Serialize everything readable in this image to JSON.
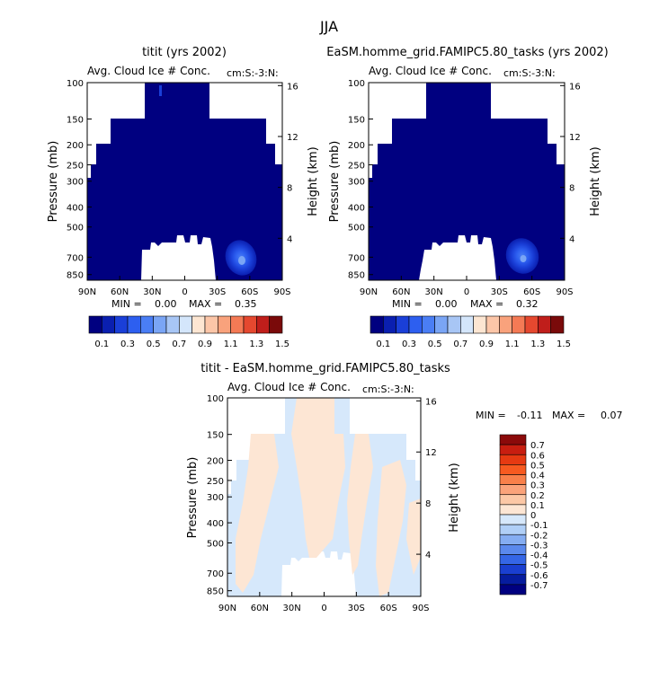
{
  "figure": {
    "title": "JJA"
  },
  "chart_data": [
    {
      "type": "heatmap",
      "title": "titit (yrs 2002)",
      "subtitle": "Avg. Cloud Ice # Conc.",
      "right_string": "cm:S:-3:N:",
      "xlabel": "",
      "ylabel": "Pressure (mb)",
      "ylabel_right": "Height (km)",
      "x_ticks": [
        "90N",
        "60N",
        "30N",
        "0",
        "30S",
        "60S",
        "90S"
      ],
      "y_ticks": [
        "100",
        "150",
        "200",
        "250",
        "300",
        "400",
        "500",
        "700",
        "850"
      ],
      "y_right_ticks": [
        "16",
        "12",
        "8",
        "4"
      ],
      "xlim": [
        90,
        -90
      ],
      "ylim": [
        1000,
        100
      ],
      "min_label": "MIN =",
      "min_value": "0.00",
      "max_label": "MAX =",
      "max_value": "0.35",
      "max_location": {
        "lat": -50,
        "pressure": 720
      },
      "colorbar_labels": [
        "0.1",
        "0.3",
        "0.5",
        "0.7",
        "0.9",
        "1.1",
        "1.3",
        "1.5"
      ],
      "colorbar_colors": [
        "#000080",
        "#0a1fb0",
        "#1a3fd8",
        "#2d5ff0",
        "#4a7ef5",
        "#7aa5f5",
        "#a8c6f5",
        "#d4e6fb",
        "#fde6d2",
        "#fcc6a8",
        "#f9a27c",
        "#f47a55",
        "#e5482f",
        "#c01e1b",
        "#7a0a0a"
      ]
    },
    {
      "type": "heatmap",
      "title": "EaSM.homme_grid.FAMIPC5.80_tasks (yrs 2002)",
      "subtitle": "Avg. Cloud Ice # Conc.",
      "right_string": "cm:S:-3:N:",
      "xlabel": "",
      "ylabel": "Pressure (mb)",
      "ylabel_right": "Height (km)",
      "x_ticks": [
        "90N",
        "60N",
        "30N",
        "0",
        "30S",
        "60S",
        "90S"
      ],
      "y_ticks": [
        "100",
        "150",
        "200",
        "250",
        "300",
        "400",
        "500",
        "700",
        "850"
      ],
      "y_right_ticks": [
        "16",
        "12",
        "8",
        "4"
      ],
      "xlim": [
        90,
        -90
      ],
      "ylim": [
        1000,
        100
      ],
      "min_label": "MIN =",
      "min_value": "0.00",
      "max_label": "MAX =",
      "max_value": "0.32",
      "max_location": {
        "lat": -50,
        "pressure": 720
      },
      "colorbar_labels": [
        "0.1",
        "0.3",
        "0.5",
        "0.7",
        "0.9",
        "1.1",
        "1.3",
        "1.5"
      ],
      "colorbar_colors": [
        "#000080",
        "#0a1fb0",
        "#1a3fd8",
        "#2d5ff0",
        "#4a7ef5",
        "#7aa5f5",
        "#a8c6f5",
        "#d4e6fb",
        "#fde6d2",
        "#fcc6a8",
        "#f9a27c",
        "#f47a55",
        "#e5482f",
        "#c01e1b",
        "#7a0a0a"
      ]
    },
    {
      "type": "heatmap",
      "title": "titit - EaSM.homme_grid.FAMIPC5.80_tasks",
      "subtitle": "Avg. Cloud Ice # Conc.",
      "right_string": "cm:S:-3:N:",
      "xlabel": "",
      "ylabel": "Pressure (mb)",
      "ylabel_right": "Height (km)",
      "x_ticks": [
        "90N",
        "60N",
        "30N",
        "0",
        "30S",
        "60S",
        "90S"
      ],
      "y_ticks": [
        "100",
        "150",
        "200",
        "250",
        "300",
        "400",
        "500",
        "700",
        "850"
      ],
      "y_right_ticks": [
        "16",
        "12",
        "8",
        "4"
      ],
      "xlim": [
        90,
        -90
      ],
      "ylim": [
        1000,
        100
      ],
      "min_label": "MIN =",
      "min_value": "-0.11",
      "max_label": "MAX =",
      "max_value": "0.07",
      "colorbar_labels": [
        "0.7",
        "0.6",
        "0.5",
        "0.4",
        "0.3",
        "0.2",
        "0.1",
        "0",
        "-0.1",
        "-0.2",
        "-0.3",
        "-0.4",
        "-0.5",
        "-0.6",
        "-0.7"
      ],
      "colorbar_colors": [
        "#8b0a0a",
        "#c81e10",
        "#e63a12",
        "#f75a20",
        "#f9804a",
        "#fba37a",
        "#fcc8a6",
        "#fde6d4",
        "#d6e8fb",
        "#b0cff7",
        "#85adf2",
        "#5b89ed",
        "#3566e6",
        "#1a3fd0",
        "#061c9e",
        "#000080"
      ],
      "diff_pos_color": "#fde6d4",
      "diff_neg_color": "#d6e8fb"
    }
  ]
}
